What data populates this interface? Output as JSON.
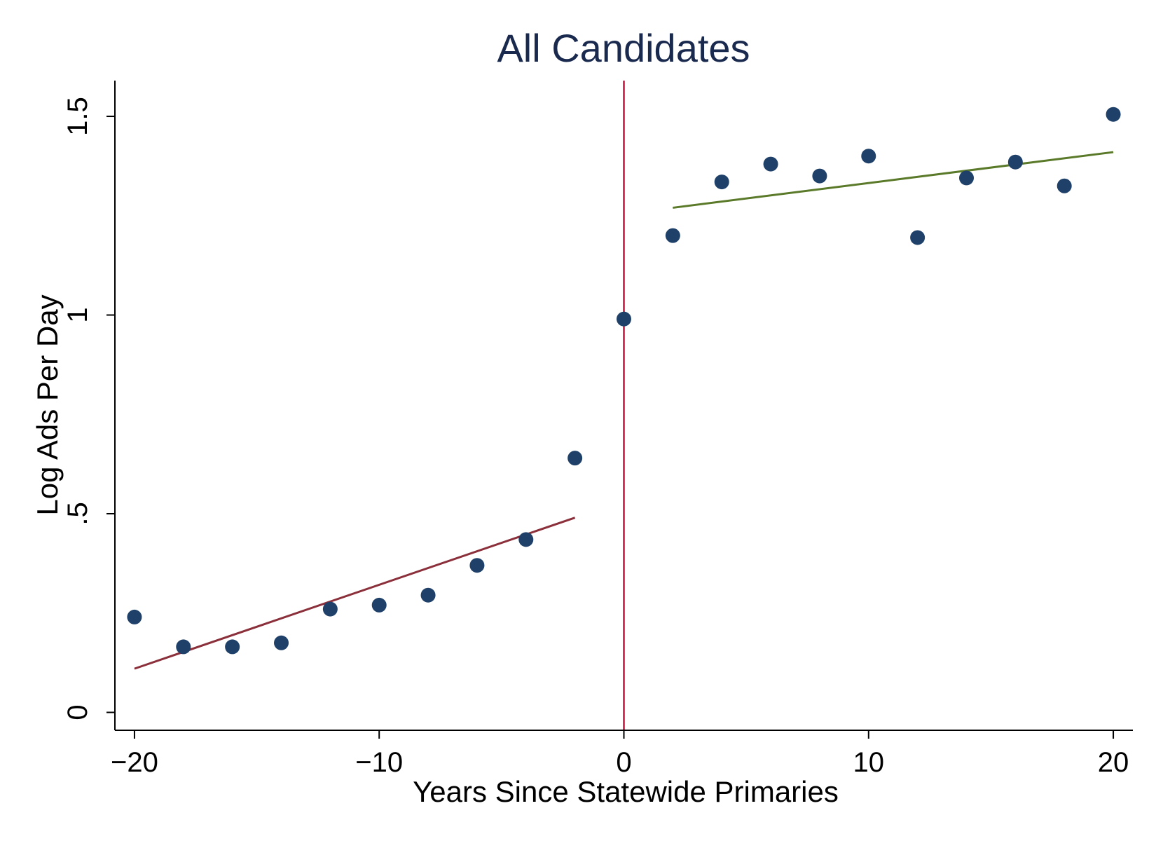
{
  "chart_data": {
    "type": "scatter",
    "title": "All Candidates",
    "xlabel": "Years Since Statewide Primaries",
    "ylabel": "Log Ads Per Day",
    "xlim": [
      -20.8,
      20.8
    ],
    "ylim": [
      -0.045,
      1.59
    ],
    "xticks": [
      -20,
      -10,
      0,
      10,
      20
    ],
    "xtick_labels": [
      "−20",
      "−10",
      "0",
      "10",
      "20"
    ],
    "yticks": [
      0,
      0.5,
      1,
      1.5
    ],
    "ytick_labels": [
      "0",
      ".5",
      "1",
      "1.5"
    ],
    "grid": false,
    "legend": "none",
    "colors": {
      "points": "#1f4068",
      "fit_before": "#8b2f3a",
      "fit_after": "#5a7a2a",
      "cutoff": "#c0143c",
      "title": "#1a2a4f"
    },
    "points": {
      "x": [
        -20,
        -18,
        -16,
        -14,
        -12,
        -10,
        -8,
        -6,
        -4,
        -2,
        0,
        2,
        4,
        6,
        8,
        10,
        12,
        14,
        16,
        18,
        20
      ],
      "y": [
        0.24,
        0.165,
        0.165,
        0.175,
        0.26,
        0.27,
        0.295,
        0.37,
        0.435,
        0.64,
        0.99,
        1.2,
        1.335,
        1.38,
        1.35,
        1.4,
        1.195,
        1.345,
        1.385,
        1.325,
        1.505
      ]
    },
    "fit_lines": [
      {
        "x": [
          -20,
          -2
        ],
        "y": [
          0.11,
          0.49
        ]
      },
      {
        "x": [
          2,
          20
        ],
        "y": [
          1.27,
          1.41
        ]
      }
    ],
    "cutoff_x": 0
  }
}
